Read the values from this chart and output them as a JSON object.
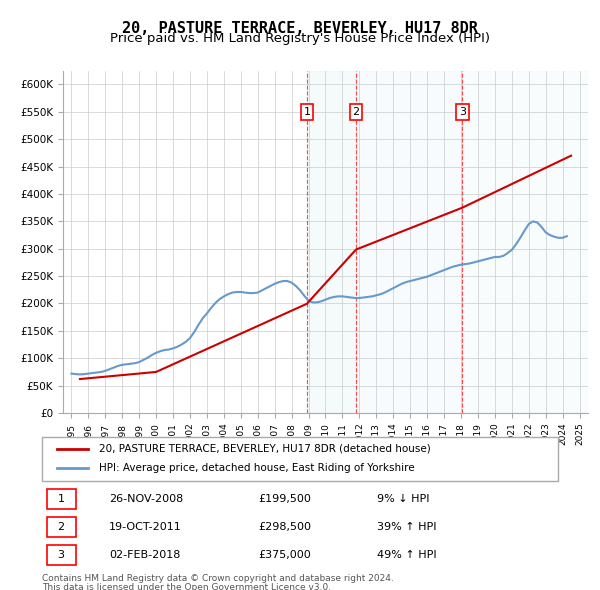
{
  "title": "20, PASTURE TERRACE, BEVERLEY, HU17 8DR",
  "subtitle": "Price paid vs. HM Land Registry's House Price Index (HPI)",
  "ylabel": "",
  "ylim": [
    0,
    625000
  ],
  "yticks": [
    0,
    50000,
    100000,
    150000,
    200000,
    250000,
    300000,
    350000,
    400000,
    450000,
    500000,
    550000,
    600000
  ],
  "xlim_start": 1994.5,
  "xlim_end": 2025.5,
  "background_color": "#ffffff",
  "plot_bg_color": "#ffffff",
  "grid_color": "#cccccc",
  "title_fontsize": 11,
  "subtitle_fontsize": 9.5,
  "transactions": [
    {
      "date_num": 2008.9,
      "price": 199500,
      "label": "1"
    },
    {
      "date_num": 2011.8,
      "price": 298500,
      "label": "2"
    },
    {
      "date_num": 2018.08,
      "price": 375000,
      "label": "3"
    }
  ],
  "transaction_dates_str": [
    "26-NOV-2008",
    "19-OCT-2011",
    "02-FEB-2018"
  ],
  "transaction_prices_str": [
    "£199,500",
    "£298,500",
    "£375,000"
  ],
  "transaction_pcts": [
    "9% ↓ HPI",
    "39% ↑ HPI",
    "49% ↑ HPI"
  ],
  "hpi_color": "#6699cc",
  "paid_color": "#cc0000",
  "legend_label_paid": "20, PASTURE TERRACE, BEVERLEY, HU17 8DR (detached house)",
  "legend_label_hpi": "HPI: Average price, detached house, East Riding of Yorkshire",
  "footer1": "Contains HM Land Registry data © Crown copyright and database right 2024.",
  "footer2": "This data is licensed under the Open Government Licence v3.0.",
  "hpi_data": {
    "years": [
      1995,
      1995.25,
      1995.5,
      1995.75,
      1996,
      1996.25,
      1996.5,
      1996.75,
      1997,
      1997.25,
      1997.5,
      1997.75,
      1998,
      1998.25,
      1998.5,
      1998.75,
      1999,
      1999.25,
      1999.5,
      1999.75,
      2000,
      2000.25,
      2000.5,
      2000.75,
      2001,
      2001.25,
      2001.5,
      2001.75,
      2002,
      2002.25,
      2002.5,
      2002.75,
      2003,
      2003.25,
      2003.5,
      2003.75,
      2004,
      2004.25,
      2004.5,
      2004.75,
      2005,
      2005.25,
      2005.5,
      2005.75,
      2006,
      2006.25,
      2006.5,
      2006.75,
      2007,
      2007.25,
      2007.5,
      2007.75,
      2008,
      2008.25,
      2008.5,
      2008.75,
      2009,
      2009.25,
      2009.5,
      2009.75,
      2010,
      2010.25,
      2010.5,
      2010.75,
      2011,
      2011.25,
      2011.5,
      2011.75,
      2012,
      2012.25,
      2012.5,
      2012.75,
      2013,
      2013.25,
      2013.5,
      2013.75,
      2014,
      2014.25,
      2014.5,
      2014.75,
      2015,
      2015.25,
      2015.5,
      2015.75,
      2016,
      2016.25,
      2016.5,
      2016.75,
      2017,
      2017.25,
      2017.5,
      2017.75,
      2018,
      2018.25,
      2018.5,
      2018.75,
      2019,
      2019.25,
      2019.5,
      2019.75,
      2020,
      2020.25,
      2020.5,
      2020.75,
      2021,
      2021.25,
      2021.5,
      2021.75,
      2022,
      2022.25,
      2022.5,
      2022.75,
      2023,
      2023.25,
      2023.5,
      2023.75,
      2024,
      2024.25
    ],
    "values": [
      72000,
      71000,
      70500,
      71000,
      72000,
      73000,
      74000,
      75000,
      77000,
      80000,
      83000,
      86000,
      88000,
      89000,
      90000,
      91000,
      93000,
      97000,
      101000,
      106000,
      110000,
      113000,
      115000,
      116000,
      118000,
      121000,
      125000,
      130000,
      137000,
      148000,
      161000,
      173000,
      182000,
      192000,
      201000,
      208000,
      213000,
      217000,
      220000,
      221000,
      221000,
      220000,
      219000,
      219000,
      220000,
      224000,
      228000,
      232000,
      236000,
      239000,
      241000,
      241000,
      238000,
      232000,
      224000,
      214000,
      205000,
      202000,
      202000,
      204000,
      207000,
      210000,
      212000,
      213000,
      213000,
      212000,
      211000,
      210000,
      210000,
      211000,
      212000,
      213000,
      215000,
      217000,
      220000,
      224000,
      228000,
      232000,
      236000,
      239000,
      241000,
      243000,
      245000,
      247000,
      249000,
      252000,
      255000,
      258000,
      261000,
      264000,
      267000,
      269000,
      271000,
      272000,
      273000,
      275000,
      277000,
      279000,
      281000,
      283000,
      285000,
      285000,
      287000,
      292000,
      298000,
      308000,
      320000,
      333000,
      345000,
      350000,
      348000,
      340000,
      330000,
      325000,
      322000,
      320000,
      320000,
      323000
    ]
  },
  "paid_data": {
    "years": [
      1995.5,
      2000.0,
      2008.9,
      2011.8,
      2018.08,
      2024.5
    ],
    "values": [
      62000,
      75000,
      199500,
      298500,
      375000,
      470000
    ]
  }
}
